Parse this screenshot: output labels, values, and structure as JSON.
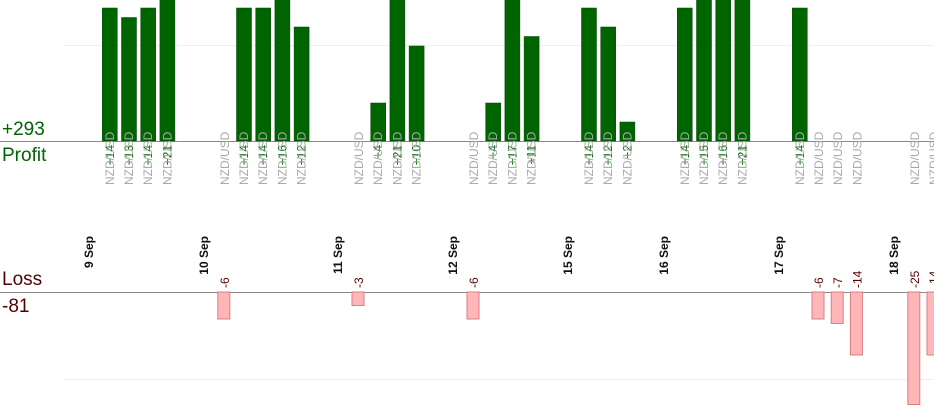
{
  "chart_data": {
    "type": "bar",
    "subtype": "diverging-trades",
    "title": "",
    "instrument": "NZD/USD",
    "profit": {
      "label": "Profit",
      "total": "+293",
      "color": "#006400"
    },
    "loss": {
      "label": "Loss",
      "total": "-81",
      "color": "#ffb6b9",
      "border": "#e07c80"
    },
    "grid": true,
    "days": [
      {
        "label": "9 Sep",
        "trades": [
          14,
          13,
          14,
          21
        ]
      },
      {
        "label": "10 Sep",
        "trades": [
          -6,
          14,
          14,
          16,
          12
        ]
      },
      {
        "label": "11 Sep",
        "trades": [
          -3,
          4,
          21,
          10
        ]
      },
      {
        "label": "12 Sep",
        "trades": [
          -6,
          4,
          17,
          11
        ]
      },
      {
        "label": "15 Sep",
        "trades": [
          14,
          12,
          2
        ]
      },
      {
        "label": "16 Sep",
        "trades": [
          14,
          15,
          16,
          21
        ]
      },
      {
        "label": "17 Sep",
        "trades": [
          14,
          -6,
          -7,
          -14
        ]
      },
      {
        "label": "18 Sep",
        "trades": [
          -25,
          -14
        ]
      }
    ]
  }
}
